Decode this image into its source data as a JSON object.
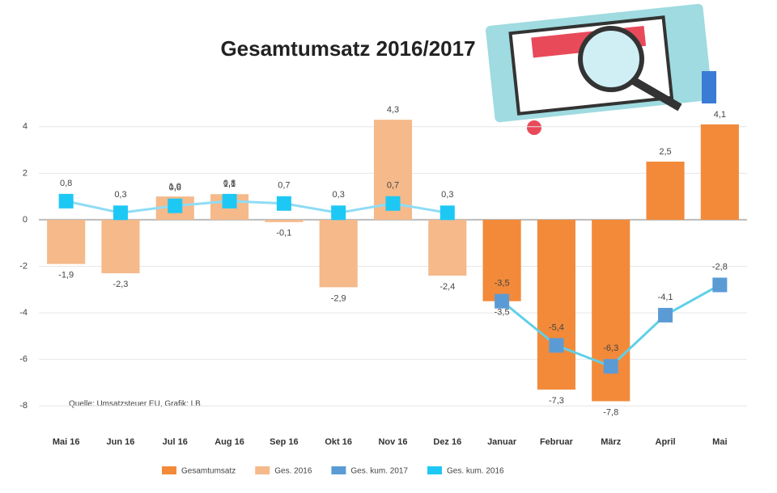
{
  "chart_data": {
    "type": "bar-line",
    "title": "Gesamtumsatz 2016/2017",
    "annotation": "Quelle: Umsatzsteuer EU, Grafik: LB",
    "categories": [
      "Mai 16",
      "Jun 16",
      "Jul 16",
      "Aug 16",
      "Sep 16",
      "Okt 16",
      "Nov 16",
      "Dez 16",
      "Januar",
      "Februar",
      "März",
      "April",
      "Mai"
    ],
    "series": [
      {
        "name": "Gesamtumsatz",
        "kind": "bar",
        "color": "#f28a3a",
        "values": [
          null,
          null,
          null,
          null,
          null,
          null,
          null,
          null,
          -3.5,
          -7.3,
          -7.8,
          2.5,
          4.1
        ],
        "value_labels": [
          null,
          null,
          null,
          null,
          null,
          null,
          null,
          null,
          "-3,5",
          "-7,3",
          "-7,8",
          "2,5",
          "4,1"
        ]
      },
      {
        "name": "Ges. 2016",
        "kind": "bar",
        "color": "#f5b98a",
        "values": [
          -1.9,
          -2.3,
          1.0,
          1.1,
          -0.1,
          -2.9,
          4.3,
          -2.4,
          null,
          null,
          null,
          null,
          null
        ],
        "value_labels": [
          "-1,9",
          "-2,3",
          "1,0",
          "1,1",
          "-0,1",
          "-2,9",
          "4,3",
          "-2,4",
          null,
          null,
          null,
          null,
          null
        ]
      },
      {
        "name": "Ges. kum. 2017",
        "kind": "line",
        "color": "#5b9bd5",
        "line_color": "#5fd0e8",
        "values": [
          null,
          null,
          null,
          null,
          null,
          null,
          null,
          null,
          -3.5,
          -5.4,
          -6.3,
          -4.1,
          -2.8
        ],
        "value_labels": [
          null,
          null,
          null,
          null,
          null,
          null,
          null,
          null,
          "-3,5",
          "-5,4",
          "-6,3",
          "-4,1",
          "-2,8"
        ]
      },
      {
        "name": "Ges. kum. 2016",
        "kind": "line",
        "color": "#1ec8f5",
        "line_color": "#8fdcf5",
        "values": [
          0.8,
          0.3,
          0.6,
          0.8,
          0.7,
          0.3,
          0.7,
          0.3,
          null,
          null,
          null,
          null,
          null
        ],
        "value_labels": [
          "0,8",
          "0,3",
          "0,6",
          "0,8",
          "0,7",
          "0,3",
          "0,7",
          "0,3",
          null,
          null,
          null,
          null,
          null
        ]
      }
    ],
    "ylim": [
      -9,
      5
    ],
    "yticks": [
      -8,
      -6,
      -4,
      -2,
      0,
      2,
      4
    ],
    "grid": true
  }
}
